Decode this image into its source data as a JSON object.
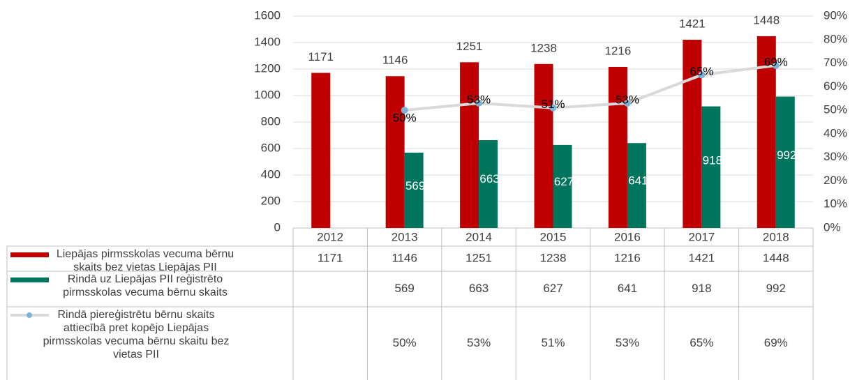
{
  "chart_data": {
    "type": "bar",
    "categories": [
      "2012",
      "2013",
      "2014",
      "2015",
      "2016",
      "2017",
      "2018"
    ],
    "ylim": [
      0,
      1600
    ],
    "yticks": [
      0,
      200,
      400,
      600,
      800,
      1000,
      1200,
      1400,
      1600
    ],
    "y2lim": [
      0,
      90
    ],
    "y2ticks": [
      {
        "value": 0,
        "label": "0%"
      },
      {
        "value": 10,
        "label": "10%"
      },
      {
        "value": 20,
        "label": "20%"
      },
      {
        "value": 30,
        "label": "30%"
      },
      {
        "value": 40,
        "label": "40%"
      },
      {
        "value": 50,
        "label": "50%"
      },
      {
        "value": 60,
        "label": "60%"
      },
      {
        "value": 70,
        "label": "70%"
      },
      {
        "value": 80,
        "label": "80%"
      },
      {
        "value": 90,
        "label": "90%"
      }
    ],
    "grid": true,
    "series": [
      {
        "name": "Liepājas pirmsskolas vecuma bērnu skaits bez vietas Liepājas PII",
        "type": "bar",
        "color": "#c00000",
        "values": [
          1171,
          1146,
          1251,
          1238,
          1216,
          1421,
          1448
        ]
      },
      {
        "name": "Rindā uz Liepājas PII reģistrēto pirmsskolas vecuma bērnu skaits",
        "type": "bar",
        "color": "#00755e",
        "values": [
          null,
          569,
          663,
          627,
          641,
          918,
          992
        ]
      },
      {
        "name": "Rindā piereģistrētu bērnu skaits attiecībā pret kopējo Liepājas pirmsskolas vecuma bērnu skaitu bez vietas PII",
        "type": "line",
        "axis": "y2",
        "color": "#d9d9d9",
        "marker_color": "#7fb3d5",
        "values": [
          null,
          50,
          53,
          51,
          53,
          65,
          69
        ],
        "value_labels": [
          null,
          "50%",
          "53%",
          "51%",
          "53%",
          "65%",
          "69%"
        ]
      }
    ]
  }
}
